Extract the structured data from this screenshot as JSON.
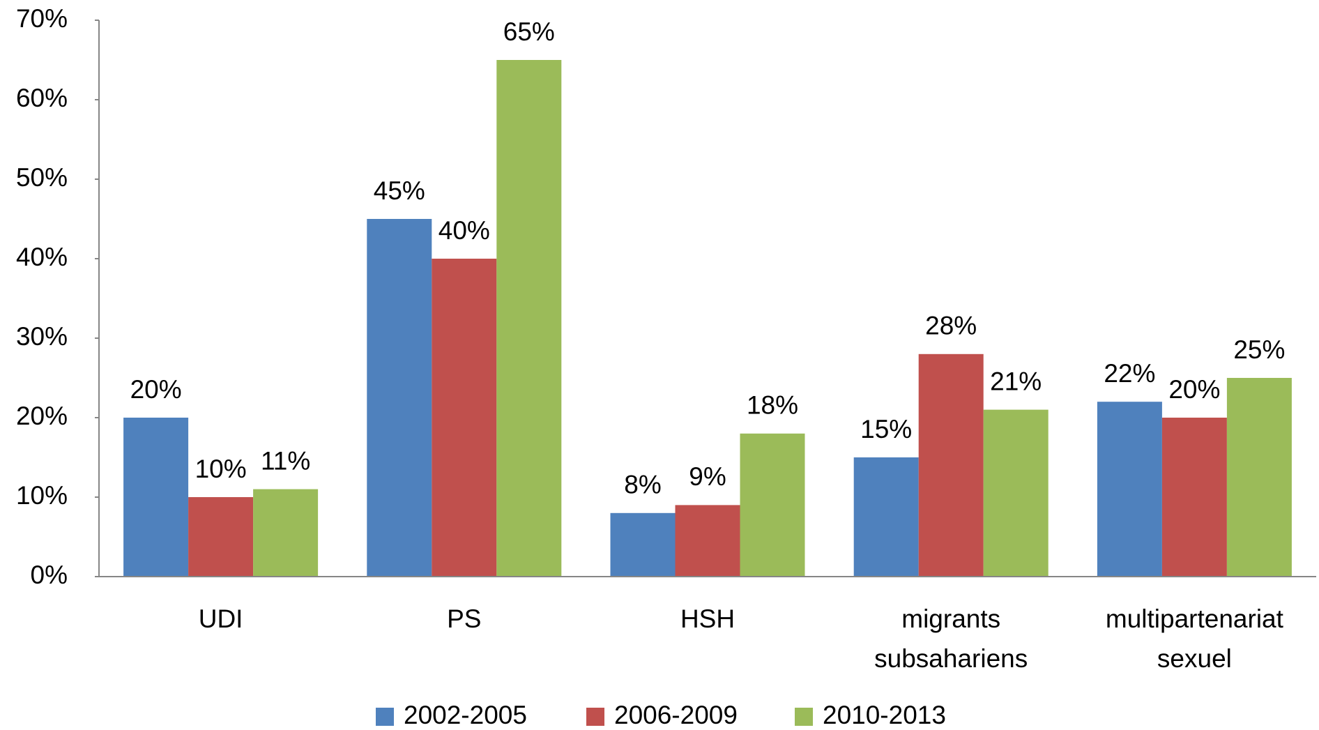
{
  "chart_data": {
    "type": "bar",
    "categories": [
      "UDI",
      "PS",
      "HSH",
      "migrants subsahariens",
      "multipartenariat sexuel"
    ],
    "series": [
      {
        "name": "2002-2005",
        "color": "#4f81bd",
        "values": [
          20,
          45,
          8,
          15,
          22
        ],
        "value_labels": [
          "20%",
          "45%",
          "8%",
          "15%",
          "22%"
        ]
      },
      {
        "name": "2006-2009",
        "color": "#c0504d",
        "values": [
          10,
          40,
          9,
          28,
          20
        ],
        "value_labels": [
          "10%",
          "40%",
          "9%",
          "28%",
          "20%"
        ]
      },
      {
        "name": "2010-2013",
        "color": "#9bbb59",
        "values": [
          11,
          65,
          18,
          21,
          25
        ],
        "value_labels": [
          "11%",
          "65%",
          "18%",
          "21%",
          "25%"
        ]
      }
    ],
    "ylim": [
      0,
      70
    ],
    "yticks": [
      {
        "value": 0,
        "label": "0%"
      },
      {
        "value": 10,
        "label": "10%"
      },
      {
        "value": 20,
        "label": "20%"
      },
      {
        "value": 30,
        "label": "30%"
      },
      {
        "value": 40,
        "label": "40%"
      },
      {
        "value": 50,
        "label": "50%"
      },
      {
        "value": 60,
        "label": "60%"
      },
      {
        "value": 70,
        "label": "70%"
      }
    ],
    "grid": false,
    "legend": "bottom"
  }
}
